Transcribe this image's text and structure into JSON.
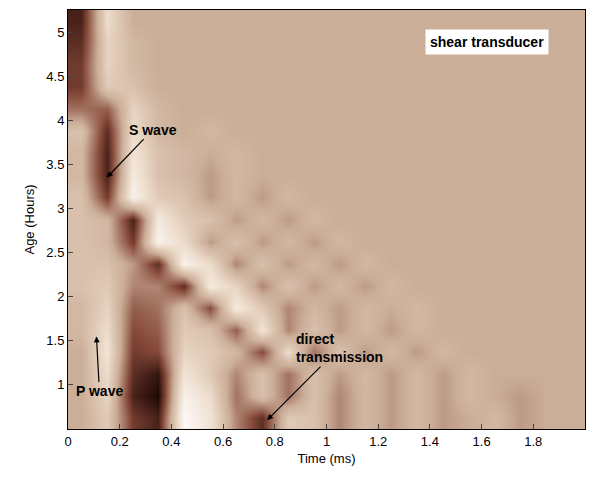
{
  "chart_data": {
    "type": "heatmap",
    "xlabel": "Time (ms)",
    "ylabel": "Age (Hours)",
    "xlim": [
      0,
      2
    ],
    "ylim": [
      0.5,
      5.25
    ],
    "xticks": [
      0,
      0.2,
      0.4,
      0.6,
      0.8,
      1,
      1.2,
      1.4,
      1.6,
      1.8
    ],
    "yticks": [
      1,
      1.5,
      2,
      2.5,
      3,
      3.5,
      4,
      4.5,
      5
    ],
    "zlim": [
      -1,
      1
    ],
    "x": [
      0.05,
      0.15,
      0.25,
      0.35,
      0.45,
      0.55,
      0.65,
      0.75,
      0.85,
      0.95,
      1.05,
      1.15,
      1.25,
      1.35,
      1.45,
      1.55,
      1.65,
      1.75,
      1.85,
      1.95
    ],
    "y": [
      0.625,
      0.875,
      1.125,
      1.375,
      1.625,
      1.875,
      2.125,
      2.375,
      2.625,
      2.875,
      3.125,
      3.375,
      3.625,
      3.875,
      4.125,
      4.375,
      4.625,
      4.875,
      5.125
    ],
    "z": [
      [
        0,
        0.3,
        -0.6,
        -0.8,
        0.9,
        0.6,
        -0.2,
        -0.7,
        0.3,
        0.2,
        -0.2,
        0.1,
        -0.1,
        0.1,
        -0.1,
        0,
        0.1,
        -0.1,
        0,
        0
      ],
      [
        0,
        0.4,
        -0.8,
        -1,
        0.8,
        0.5,
        -0.3,
        0.2,
        -0.3,
        0.2,
        -0.2,
        0.1,
        -0.1,
        0.1,
        -0.1,
        0.1,
        0,
        -0.1,
        0,
        0
      ],
      [
        0,
        0.5,
        -0.7,
        -0.9,
        0.6,
        0.3,
        -0.2,
        0.2,
        -0.3,
        0.2,
        -0.1,
        0.1,
        -0.1,
        0.1,
        -0.1,
        0.1,
        0,
        0,
        0,
        0
      ],
      [
        0,
        0.6,
        -0.6,
        -0.5,
        0.4,
        0.3,
        0.1,
        -0.5,
        0.5,
        -0.3,
        0.2,
        -0.1,
        0.1,
        -0.1,
        0.1,
        0,
        0,
        0,
        0,
        0
      ],
      [
        0.1,
        0.5,
        -0.5,
        -0.4,
        0.3,
        0.2,
        -0.4,
        0.6,
        -0.2,
        0.2,
        -0.1,
        0.1,
        -0.1,
        0.1,
        0,
        0,
        0,
        0,
        0,
        0
      ],
      [
        0.1,
        0.4,
        -0.4,
        -0.3,
        0.2,
        -0.5,
        0.7,
        0.3,
        -0.2,
        0.1,
        -0.1,
        0.1,
        0,
        0.1,
        0,
        0,
        0,
        0,
        0,
        0
      ],
      [
        0.2,
        0.3,
        -0.2,
        -0.2,
        -0.7,
        0.7,
        0.4,
        -0.2,
        0.2,
        -0.1,
        0.1,
        -0.1,
        0.1,
        0,
        0,
        0,
        0,
        0,
        0,
        0
      ],
      [
        0.2,
        0.2,
        -0.1,
        -0.7,
        0.8,
        0.5,
        -0.2,
        0.2,
        -0.1,
        0.1,
        -0.1,
        0.1,
        0,
        0,
        0,
        0,
        0,
        0,
        0,
        0
      ],
      [
        0.2,
        0.1,
        -0.6,
        0.8,
        0.5,
        -0.1,
        0.2,
        -0.1,
        0.1,
        -0.1,
        0.1,
        0,
        0,
        0,
        0,
        0,
        0,
        0,
        0,
        0
      ],
      [
        0.2,
        0.1,
        -0.8,
        0.7,
        0.3,
        0.2,
        -0.1,
        0.1,
        -0.1,
        0.1,
        0,
        0,
        0,
        0,
        0,
        0,
        0,
        0,
        0,
        0
      ],
      [
        0.2,
        -0.6,
        0.8,
        0.3,
        0.2,
        -0.1,
        0.1,
        -0.1,
        0.1,
        0,
        0,
        0,
        0,
        0,
        0,
        0,
        0,
        0,
        0,
        0
      ],
      [
        0.1,
        -0.8,
        0.7,
        0.2,
        0.1,
        -0.1,
        0.1,
        0,
        0,
        0,
        0,
        0,
        0,
        0,
        0,
        0,
        0,
        0,
        0,
        0
      ],
      [
        0.1,
        -0.8,
        0.6,
        0.2,
        0.1,
        0,
        0.1,
        0,
        0,
        0,
        0,
        0,
        0,
        0,
        0,
        0,
        0,
        0,
        0,
        0
      ],
      [
        0.2,
        -0.7,
        0.5,
        0.1,
        0,
        0.1,
        0,
        0,
        0,
        0,
        0,
        0,
        0,
        0,
        0,
        0,
        0,
        0,
        0,
        0
      ],
      [
        -0.3,
        -0.4,
        0.4,
        0.1,
        0,
        0,
        0,
        0,
        0,
        0,
        0,
        0,
        0,
        0,
        0,
        0,
        0,
        0,
        0,
        0
      ],
      [
        -0.6,
        0.3,
        0.2,
        0,
        0,
        0,
        0,
        0,
        0,
        0,
        0,
        0,
        0,
        0,
        0,
        0,
        0,
        0,
        0,
        0
      ],
      [
        -0.6,
        0.4,
        0.1,
        0,
        0,
        0,
        0,
        0,
        0,
        0,
        0,
        0,
        0,
        0,
        0,
        0,
        0,
        0,
        0,
        0
      ],
      [
        -0.7,
        0.4,
        0.1,
        0,
        0,
        0,
        0,
        0,
        0,
        0,
        0,
        0,
        0,
        0,
        0,
        0,
        0,
        0,
        0,
        0
      ],
      [
        -0.8,
        0.5,
        0,
        0,
        0,
        0,
        0,
        0,
        0,
        0,
        0,
        0,
        0,
        0,
        0,
        0,
        0,
        0,
        0,
        0
      ]
    ],
    "label": "shear transducer",
    "annotations": [
      {
        "text": "S wave",
        "x": 0.15,
        "y": 3.35
      },
      {
        "text": "P wave",
        "x": 0.11,
        "y": 1.55
      },
      {
        "text": "direct transmission",
        "x": 0.77,
        "y": 0.6
      }
    ]
  }
}
